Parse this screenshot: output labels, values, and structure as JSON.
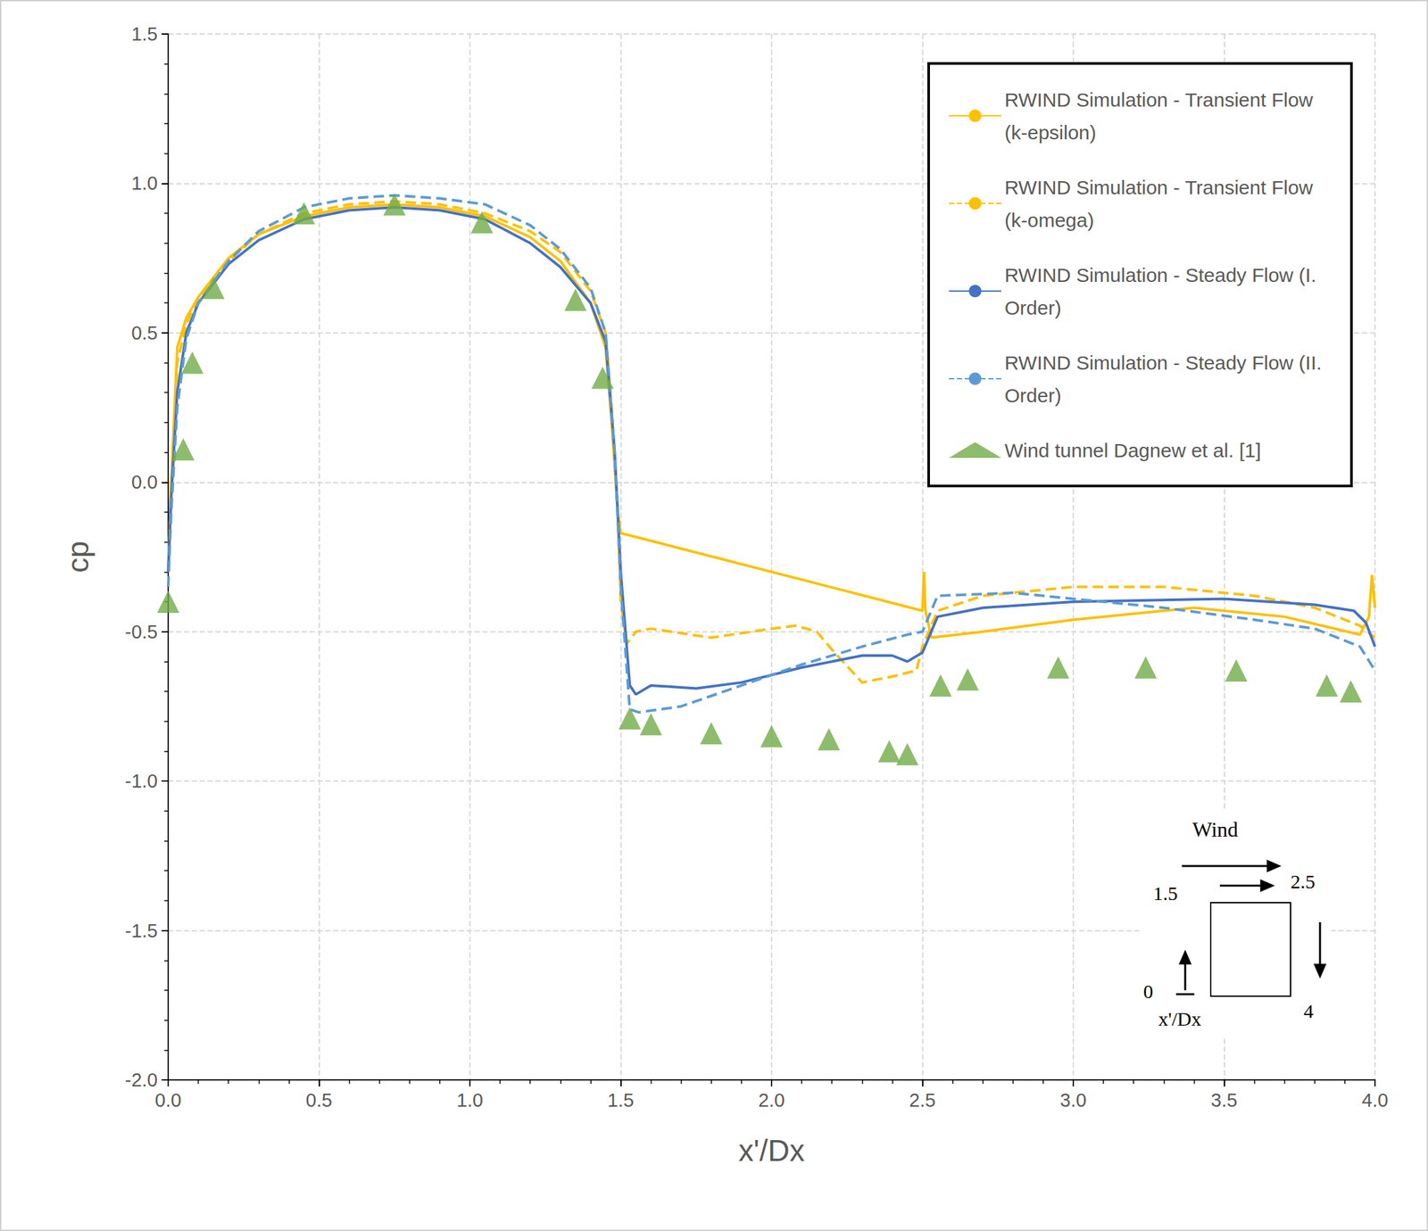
{
  "chart_data": {
    "type": "line",
    "xlabel": "x'/Dx",
    "ylabel": "cp",
    "xlim": [
      0,
      4
    ],
    "xticks": [
      {
        "value": 0,
        "label": "0.0"
      },
      0.5,
      {
        "value": 1,
        "label": "1.0"
      },
      1.5,
      {
        "value": 2,
        "label": "2.0"
      },
      2.5,
      {
        "value": 3,
        "label": "3.0"
      },
      3.5,
      {
        "value": 4,
        "label": "4.0"
      }
    ],
    "ylim": [
      -2,
      1.5
    ],
    "yticks": [
      {
        "value": -2,
        "label": "-2.0"
      },
      -1.5,
      {
        "value": -1,
        "label": "-1.0"
      },
      -0.5,
      {
        "value": 0,
        "label": "0.0"
      },
      0.5,
      {
        "value": 1,
        "label": "1.0"
      },
      1.5
    ],
    "grid": true,
    "legend": "upper right",
    "annotations": [
      "Wind",
      "1.5",
      "2.5",
      "0",
      "4",
      "x'/Dx"
    ],
    "series": [
      {
        "name": "RWIND Simulation - Transient Flow (k-epsilon)",
        "type": "line",
        "color": "#ffc000",
        "line_style": "solid",
        "x": [
          0,
          0.01,
          0.03,
          0.06,
          0.1,
          0.2,
          0.3,
          0.45,
          0.6,
          0.75,
          0.9,
          1.05,
          1.2,
          1.3,
          1.4,
          1.45,
          1.47,
          1.49,
          1.5,
          2.5,
          2.505,
          2.51,
          2.53,
          2.7,
          3.0,
          3.4,
          3.7,
          3.95,
          3.98,
          3.99,
          4.0
        ],
        "values": [
          -0.3,
          0.0,
          0.45,
          0.55,
          0.62,
          0.75,
          0.83,
          0.89,
          0.92,
          0.93,
          0.92,
          0.89,
          0.82,
          0.74,
          0.6,
          0.45,
          0.2,
          -0.1,
          -0.17,
          -0.43,
          -0.3,
          -0.43,
          -0.52,
          -0.5,
          -0.46,
          -0.42,
          -0.45,
          -0.51,
          -0.45,
          -0.31,
          -0.42
        ]
      },
      {
        "name": "RWIND Simulation - Transient Flow (k-omega)",
        "type": "line",
        "color": "#ffc000",
        "line_style": "dashed",
        "x": [
          0,
          0.01,
          0.03,
          0.06,
          0.1,
          0.2,
          0.3,
          0.45,
          0.6,
          0.75,
          0.9,
          1.05,
          1.2,
          1.3,
          1.4,
          1.45,
          1.47,
          1.49,
          1.5,
          1.52,
          1.55,
          1.6,
          1.8,
          2.0,
          2.08,
          2.15,
          2.2,
          2.3,
          2.4,
          2.48,
          2.5,
          2.55,
          2.7,
          3.0,
          3.3,
          3.6,
          3.8,
          3.95,
          4.0
        ],
        "values": [
          -0.3,
          -0.02,
          0.4,
          0.53,
          0.61,
          0.74,
          0.83,
          0.9,
          0.93,
          0.94,
          0.93,
          0.9,
          0.84,
          0.77,
          0.64,
          0.5,
          0.25,
          -0.1,
          -0.4,
          -0.54,
          -0.5,
          -0.49,
          -0.52,
          -0.49,
          -0.48,
          -0.5,
          -0.56,
          -0.67,
          -0.65,
          -0.63,
          -0.55,
          -0.43,
          -0.38,
          -0.35,
          -0.35,
          -0.38,
          -0.42,
          -0.48,
          -0.52
        ]
      },
      {
        "name": "RWIND Simulation - Steady Flow (I. Order)",
        "type": "line",
        "color": "#4472c4",
        "line_style": "solid",
        "x": [
          0,
          0.01,
          0.03,
          0.06,
          0.1,
          0.2,
          0.3,
          0.45,
          0.6,
          0.75,
          0.9,
          1.05,
          1.2,
          1.3,
          1.4,
          1.45,
          1.48,
          1.5,
          1.53,
          1.55,
          1.6,
          1.75,
          1.9,
          2.1,
          2.3,
          2.4,
          2.45,
          2.5,
          2.55,
          2.7,
          3.0,
          3.5,
          3.8,
          3.93,
          3.97,
          4.0
        ],
        "values": [
          -0.3,
          -0.05,
          0.3,
          0.5,
          0.6,
          0.73,
          0.81,
          0.88,
          0.91,
          0.92,
          0.91,
          0.88,
          0.8,
          0.72,
          0.6,
          0.47,
          0.1,
          -0.3,
          -0.68,
          -0.71,
          -0.68,
          -0.69,
          -0.67,
          -0.62,
          -0.58,
          -0.58,
          -0.6,
          -0.57,
          -0.45,
          -0.42,
          -0.4,
          -0.39,
          -0.41,
          -0.43,
          -0.47,
          -0.55
        ]
      },
      {
        "name": "RWIND Simulation - Steady Flow (II. Order)",
        "type": "line",
        "color": "#5b9bd5",
        "line_style": "dashed",
        "x": [
          0,
          0.01,
          0.03,
          0.06,
          0.1,
          0.2,
          0.3,
          0.45,
          0.6,
          0.75,
          0.9,
          1.05,
          1.2,
          1.3,
          1.4,
          1.45,
          1.48,
          1.5,
          1.53,
          1.56,
          1.7,
          1.9,
          2.1,
          2.3,
          2.45,
          2.5,
          2.55,
          2.8,
          3.0,
          3.3,
          3.6,
          3.8,
          3.95,
          4.0
        ],
        "values": [
          -0.35,
          -0.1,
          0.25,
          0.48,
          0.6,
          0.74,
          0.84,
          0.92,
          0.95,
          0.96,
          0.95,
          0.93,
          0.86,
          0.78,
          0.65,
          0.5,
          0.1,
          -0.35,
          -0.76,
          -0.77,
          -0.75,
          -0.68,
          -0.61,
          -0.55,
          -0.51,
          -0.5,
          -0.38,
          -0.37,
          -0.39,
          -0.42,
          -0.46,
          -0.49,
          -0.55,
          -0.63
        ]
      },
      {
        "name": "Wind tunnel Dagnew et al. [1]",
        "type": "scatter",
        "color": "#70ad47",
        "marker": "triangle",
        "x": [
          0.0,
          0.05,
          0.08,
          0.15,
          0.45,
          0.75,
          1.04,
          1.35,
          1.44,
          1.53,
          1.6,
          1.8,
          2.0,
          2.19,
          2.39,
          2.45,
          2.56,
          2.65,
          2.95,
          3.24,
          3.54,
          3.84,
          3.92
        ],
        "values": [
          -0.4,
          0.11,
          0.4,
          0.65,
          0.9,
          0.93,
          0.87,
          0.61,
          0.35,
          -0.79,
          -0.81,
          -0.84,
          -0.85,
          -0.86,
          -0.9,
          -0.91,
          -0.68,
          -0.66,
          -0.62,
          -0.62,
          -0.63,
          -0.68,
          -0.7
        ]
      }
    ]
  }
}
